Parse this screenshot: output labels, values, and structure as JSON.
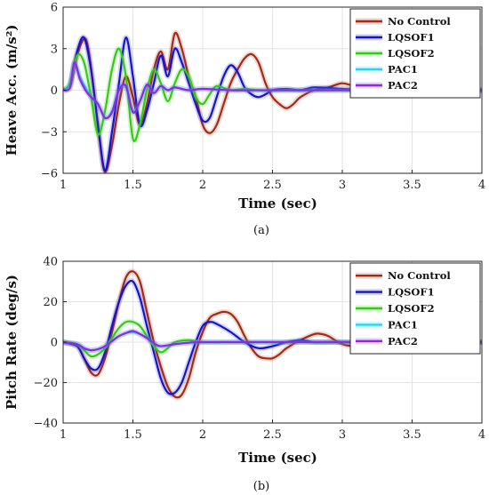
{
  "colors": {
    "No Control": "#a52a14",
    "LQSOF1": "#1414cc",
    "LQSOF2": "#33cc14",
    "PAC1": "#22d8ee",
    "PAC2": "#8a2be2"
  },
  "chart_data": [
    {
      "type": "line",
      "panel": "(a)",
      "xlabel": "Time (sec)",
      "ylabel": "Heave Acc. (m/s²)",
      "xlim": [
        1,
        4
      ],
      "ylim": [
        -6,
        6
      ],
      "xticks": [
        1,
        1.5,
        2,
        2.5,
        3,
        3.5,
        4
      ],
      "yticks": [
        -6,
        -3,
        0,
        3,
        6
      ],
      "grid": true,
      "legend_position": "top-right",
      "series": [
        {
          "name": "No Control",
          "x": [
            1.0,
            1.05,
            1.1,
            1.15,
            1.18,
            1.22,
            1.26,
            1.3,
            1.35,
            1.4,
            1.45,
            1.5,
            1.55,
            1.6,
            1.65,
            1.7,
            1.75,
            1.8,
            1.85,
            1.9,
            1.95,
            2.0,
            2.05,
            2.1,
            2.15,
            2.2,
            2.25,
            2.3,
            2.35,
            2.4,
            2.45,
            2.5,
            2.55,
            2.6,
            2.65,
            2.7,
            2.8,
            2.9,
            3.0,
            3.1,
            3.2,
            3.3,
            3.5,
            3.7,
            4.0
          ],
          "y": [
            0,
            0.3,
            2.5,
            3.7,
            3.0,
            0.0,
            -3.5,
            -5.9,
            -4.0,
            -1.0,
            1.0,
            -0.5,
            -2.5,
            -1.0,
            1.5,
            2.8,
            1.5,
            4.1,
            3.0,
            1.0,
            -0.5,
            -2.5,
            -3.1,
            -2.5,
            -1.0,
            0.5,
            1.5,
            2.3,
            2.6,
            2.0,
            0.5,
            -0.5,
            -1.0,
            -1.3,
            -1.0,
            -0.5,
            0.0,
            0.2,
            0.5,
            0.2,
            -0.2,
            -0.1,
            0,
            0,
            0
          ]
        },
        {
          "name": "LQSOF1",
          "x": [
            1.0,
            1.05,
            1.1,
            1.15,
            1.2,
            1.25,
            1.3,
            1.35,
            1.4,
            1.45,
            1.5,
            1.55,
            1.6,
            1.65,
            1.7,
            1.75,
            1.8,
            1.85,
            1.9,
            1.95,
            2.0,
            2.05,
            2.1,
            2.15,
            2.2,
            2.25,
            2.3,
            2.35,
            2.4,
            2.45,
            2.5,
            2.6,
            2.7,
            2.8,
            3.0,
            3.2,
            3.5,
            4.0
          ],
          "y": [
            0,
            0.5,
            2.8,
            3.8,
            1.5,
            -2.5,
            -5.8,
            -3.0,
            0.5,
            3.8,
            1.0,
            -2.5,
            -1.5,
            0.5,
            2.5,
            1.0,
            3.0,
            2.0,
            0.5,
            -1.0,
            -2.2,
            -2.0,
            -0.5,
            1.0,
            1.8,
            1.3,
            0.2,
            -0.3,
            -0.5,
            -0.3,
            0.0,
            0.1,
            0.0,
            0.2,
            0.1,
            0.0,
            0,
            0
          ]
        },
        {
          "name": "LQSOF2",
          "x": [
            1.0,
            1.05,
            1.1,
            1.15,
            1.2,
            1.25,
            1.3,
            1.35,
            1.4,
            1.45,
            1.5,
            1.55,
            1.6,
            1.65,
            1.7,
            1.75,
            1.8,
            1.85,
            1.9,
            1.95,
            2.0,
            2.05,
            2.1,
            2.2,
            2.3,
            2.4,
            2.6,
            3.0,
            4.0
          ],
          "y": [
            0,
            0.5,
            2.5,
            2.0,
            -0.5,
            -3.2,
            -1.5,
            1.5,
            3.0,
            1.0,
            -3.5,
            -2.5,
            0.0,
            1.5,
            0.5,
            -0.8,
            0.5,
            1.5,
            1.0,
            -0.5,
            -1.0,
            -0.3,
            0.3,
            0.0,
            0.1,
            0.0,
            0.0,
            0,
            0
          ]
        },
        {
          "name": "PAC1",
          "x": [
            1.0,
            1.05,
            1.08,
            1.12,
            1.16,
            1.2,
            1.25,
            1.3,
            1.35,
            1.4,
            1.45,
            1.5,
            1.55,
            1.6,
            1.65,
            1.7,
            1.75,
            1.8,
            1.9,
            2.0,
            2.2,
            2.5,
            3.0,
            4.0
          ],
          "y": [
            0,
            0.3,
            2.0,
            1.0,
            0.2,
            -0.5,
            -1.0,
            -2.0,
            -1.5,
            0.0,
            0.2,
            -1.5,
            -0.8,
            0.4,
            -0.2,
            0.3,
            0.0,
            0.2,
            0.0,
            0.1,
            0.0,
            0,
            0,
            0
          ]
        },
        {
          "name": "PAC2",
          "x": [
            1.0,
            1.05,
            1.08,
            1.12,
            1.16,
            1.2,
            1.25,
            1.3,
            1.35,
            1.4,
            1.45,
            1.5,
            1.55,
            1.6,
            1.65,
            1.7,
            1.75,
            1.8,
            1.9,
            2.0,
            2.2,
            2.5,
            3.0,
            4.0
          ],
          "y": [
            0,
            0.2,
            2.0,
            0.8,
            0.0,
            -0.5,
            -1.0,
            -2.0,
            -1.6,
            0.0,
            0.3,
            -1.6,
            -0.8,
            0.4,
            -0.2,
            0.3,
            0.0,
            0.2,
            0.0,
            0.1,
            0.0,
            0,
            0,
            0
          ]
        }
      ]
    },
    {
      "type": "line",
      "panel": "(b)",
      "xlabel": "Time (sec)",
      "ylabel": "Pitch Rate (deg/s)",
      "xlim": [
        1,
        4
      ],
      "ylim": [
        -40,
        40
      ],
      "xticks": [
        1,
        1.5,
        2,
        2.5,
        3,
        3.5,
        4
      ],
      "yticks": [
        -40,
        -20,
        0,
        20,
        40
      ],
      "grid": true,
      "legend_position": "top-right",
      "series": [
        {
          "name": "No Control",
          "x": [
            1.0,
            1.1,
            1.15,
            1.2,
            1.25,
            1.3,
            1.35,
            1.4,
            1.45,
            1.5,
            1.55,
            1.6,
            1.65,
            1.7,
            1.75,
            1.8,
            1.85,
            1.9,
            1.95,
            2.0,
            2.05,
            2.1,
            2.15,
            2.2,
            2.25,
            2.3,
            2.35,
            2.4,
            2.45,
            2.5,
            2.55,
            2.6,
            2.7,
            2.8,
            2.85,
            2.9,
            3.0,
            3.1,
            3.2,
            3.4,
            3.6,
            4.0
          ],
          "y": [
            0,
            -2,
            -8,
            -15,
            -16,
            -8,
            5,
            20,
            32,
            35,
            30,
            15,
            0,
            -12,
            -22,
            -27,
            -26,
            -18,
            -5,
            5,
            12,
            14,
            15,
            14,
            10,
            3,
            -3,
            -7,
            -8,
            -8,
            -6,
            -3,
            1,
            4,
            4,
            3,
            -1,
            -2,
            -1,
            0,
            0,
            0
          ]
        },
        {
          "name": "LQSOF1",
          "x": [
            1.0,
            1.1,
            1.15,
            1.2,
            1.25,
            1.3,
            1.35,
            1.4,
            1.45,
            1.5,
            1.55,
            1.6,
            1.65,
            1.7,
            1.75,
            1.8,
            1.85,
            1.9,
            1.95,
            2.0,
            2.05,
            2.1,
            2.2,
            2.3,
            2.4,
            2.5,
            2.6,
            2.7,
            2.8,
            2.9,
            3.0,
            3.2,
            4.0
          ],
          "y": [
            0,
            -2,
            -8,
            -13,
            -13,
            -5,
            8,
            20,
            28,
            30,
            22,
            8,
            -5,
            -18,
            -25,
            -25,
            -20,
            -10,
            0,
            8,
            10,
            9,
            5,
            0,
            -3,
            -2,
            0,
            1,
            0,
            0,
            0,
            0,
            0
          ]
        },
        {
          "name": "LQSOF2",
          "x": [
            1.0,
            1.1,
            1.15,
            1.2,
            1.25,
            1.3,
            1.35,
            1.4,
            1.45,
            1.5,
            1.55,
            1.6,
            1.65,
            1.7,
            1.75,
            1.8,
            1.9,
            2.0,
            2.2,
            2.5,
            3.0,
            4.0
          ],
          "y": [
            0,
            -1,
            -4,
            -7,
            -6,
            -3,
            2,
            7,
            10,
            10,
            8,
            3,
            -2,
            -5,
            -3,
            0,
            1,
            0,
            0,
            0,
            0,
            0
          ]
        },
        {
          "name": "PAC1",
          "x": [
            1.0,
            1.1,
            1.15,
            1.2,
            1.25,
            1.3,
            1.35,
            1.4,
            1.45,
            1.5,
            1.55,
            1.6,
            1.65,
            1.7,
            1.8,
            1.9,
            2.0,
            2.5,
            3.0,
            4.0
          ],
          "y": [
            0,
            -1,
            -3,
            -4,
            -3.5,
            -2,
            0.5,
            3,
            4.5,
            5,
            4,
            2,
            -0.5,
            -2,
            -1,
            -0.3,
            0,
            0,
            0,
            0
          ]
        },
        {
          "name": "PAC2",
          "x": [
            1.0,
            1.1,
            1.15,
            1.2,
            1.25,
            1.3,
            1.35,
            1.4,
            1.45,
            1.5,
            1.55,
            1.6,
            1.65,
            1.7,
            1.8,
            1.9,
            2.0,
            2.5,
            3.0,
            4.0
          ],
          "y": [
            0,
            -1,
            -3,
            -4,
            -3.5,
            -2,
            0.5,
            3,
            4.5,
            5.5,
            4,
            2,
            -0.5,
            -2,
            -1,
            -0.3,
            0,
            0,
            0,
            0
          ]
        }
      ]
    }
  ]
}
